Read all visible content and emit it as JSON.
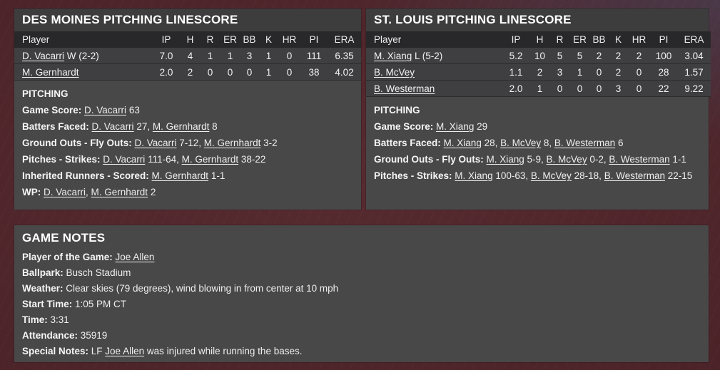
{
  "colors": {
    "background_maroon": "#4b2328",
    "background_blue_tint": "#485270",
    "panel_body": "#484849",
    "panel_title_bar": "#3d3d3e",
    "table_header": "#28282a",
    "table_row": "#3f3f41",
    "text": "#efefef"
  },
  "linescores": [
    {
      "title": "DES MOINES PITCHING LINESCORE",
      "columns": [
        "Player",
        "IP",
        "H",
        "R",
        "ER",
        "BB",
        "K",
        "HR",
        "PI",
        "ERA"
      ],
      "rows": [
        {
          "name": "D. Vacarri",
          "decoration": "W (2-2)",
          "stats": [
            "7.0",
            "4",
            "1",
            "1",
            "3",
            "1",
            "0",
            "111",
            "6.35"
          ]
        },
        {
          "name": "M. Gernhardt",
          "decoration": "",
          "stats": [
            "2.0",
            "2",
            "0",
            "0",
            "0",
            "1",
            "0",
            "38",
            "4.02"
          ]
        }
      ],
      "section_title": "PITCHING",
      "lines": [
        {
          "label": "Game Score:",
          "parts": [
            {
              "link": "D. Vacarri",
              "text": " 63"
            }
          ]
        },
        {
          "label": "Batters Faced:",
          "parts": [
            {
              "link": "D. Vacarri",
              "text": " 27, "
            },
            {
              "link": "M. Gernhardt",
              "text": " 8"
            }
          ]
        },
        {
          "label": "Ground Outs - Fly Outs:",
          "parts": [
            {
              "link": "D. Vacarri",
              "text": " 7-12, "
            },
            {
              "link": "M. Gernhardt",
              "text": " 3-2"
            }
          ]
        },
        {
          "label": "Pitches - Strikes:",
          "parts": [
            {
              "link": "D. Vacarri",
              "text": " 111-64, "
            },
            {
              "link": "M. Gernhardt",
              "text": " 38-22"
            }
          ]
        },
        {
          "label": "Inherited Runners - Scored:",
          "parts": [
            {
              "link": "M. Gernhardt",
              "text": " 1-1"
            }
          ]
        },
        {
          "label": "WP:",
          "parts": [
            {
              "link": "D. Vacarri",
              "text": ", "
            },
            {
              "link": "M. Gernhardt",
              "text": " 2"
            }
          ]
        }
      ]
    },
    {
      "title": "ST. LOUIS PITCHING LINESCORE",
      "columns": [
        "Player",
        "IP",
        "H",
        "R",
        "ER",
        "BB",
        "K",
        "HR",
        "PI",
        "ERA"
      ],
      "rows": [
        {
          "name": "M. Xiang",
          "decoration": "L (5-2)",
          "stats": [
            "5.2",
            "10",
            "5",
            "5",
            "2",
            "2",
            "2",
            "100",
            "3.04"
          ]
        },
        {
          "name": "B. McVey",
          "decoration": "",
          "stats": [
            "1.1",
            "2",
            "3",
            "1",
            "0",
            "2",
            "0",
            "28",
            "1.57"
          ]
        },
        {
          "name": "B. Westerman",
          "decoration": "",
          "stats": [
            "2.0",
            "1",
            "0",
            "0",
            "0",
            "3",
            "0",
            "22",
            "9.22"
          ]
        }
      ],
      "section_title": "PITCHING",
      "lines": [
        {
          "label": "Game Score:",
          "parts": [
            {
              "link": "M. Xiang",
              "text": " 29"
            }
          ]
        },
        {
          "label": "Batters Faced:",
          "parts": [
            {
              "link": "M. Xiang",
              "text": " 28, "
            },
            {
              "link": "B. McVey",
              "text": " 8, "
            },
            {
              "link": "B. Westerman",
              "text": " 6"
            }
          ]
        },
        {
          "label": "Ground Outs - Fly Outs:",
          "parts": [
            {
              "link": "M. Xiang",
              "text": " 5-9, "
            },
            {
              "link": "B. McVey",
              "text": " 0-2, "
            },
            {
              "link": "B. Westerman",
              "text": " 1-1"
            }
          ]
        },
        {
          "label": "Pitches - Strikes:",
          "parts": [
            {
              "link": "M. Xiang",
              "text": " 100-63, "
            },
            {
              "link": "B. McVey",
              "text": " 28-18, "
            },
            {
              "link": "B. Westerman",
              "text": " 22-15"
            }
          ]
        }
      ]
    }
  ],
  "game_notes": {
    "title": "GAME NOTES",
    "lines": [
      {
        "label": "Player of the Game:",
        "parts": [
          {
            "link": "Joe Allen",
            "text": ""
          }
        ]
      },
      {
        "label": "Ballpark:",
        "parts": [
          {
            "text": "Busch Stadium"
          }
        ]
      },
      {
        "label": "Weather:",
        "parts": [
          {
            "text": "Clear skies (79 degrees), wind blowing in from center at 10 mph"
          }
        ]
      },
      {
        "label": "Start Time:",
        "parts": [
          {
            "text": "1:05 PM CT"
          }
        ]
      },
      {
        "label": "Time:",
        "parts": [
          {
            "text": "3:31"
          }
        ]
      },
      {
        "label": "Attendance:",
        "parts": [
          {
            "text": "35919"
          }
        ]
      },
      {
        "label": "Special Notes:",
        "parts": [
          {
            "text": "LF "
          },
          {
            "link": "Joe Allen",
            "text": " was injured while running the bases."
          }
        ]
      }
    ]
  }
}
